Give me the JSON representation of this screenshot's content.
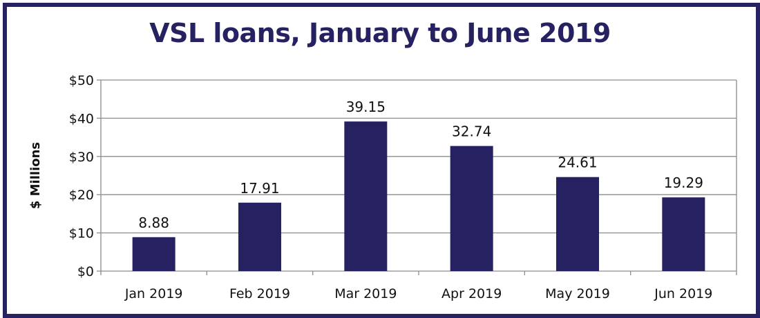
{
  "chart_data": {
    "type": "bar",
    "title": "VSL loans, January to June 2019",
    "ylabel": "$ Millions",
    "xlabel": "",
    "categories": [
      "Jan 2019",
      "Feb 2019",
      "Mar 2019",
      "Apr 2019",
      "May 2019",
      "Jun 2019"
    ],
    "values": [
      8.88,
      17.91,
      39.15,
      32.74,
      24.61,
      19.29
    ],
    "data_labels": [
      "8.88",
      "17.91",
      "39.15",
      "32.74",
      "24.61",
      "19.29"
    ],
    "ylim": [
      0,
      50
    ],
    "yticks": [
      0,
      10,
      20,
      30,
      40,
      50
    ],
    "ytick_labels": [
      "$0",
      "$10",
      "$20",
      "$30",
      "$40",
      "$50"
    ],
    "grid": true,
    "legend": "none",
    "colors": {
      "bar": "#262262",
      "frame": "#262262",
      "title": "#262262",
      "grid": "#8c8c8c",
      "axis": "#8c8c8c"
    }
  }
}
